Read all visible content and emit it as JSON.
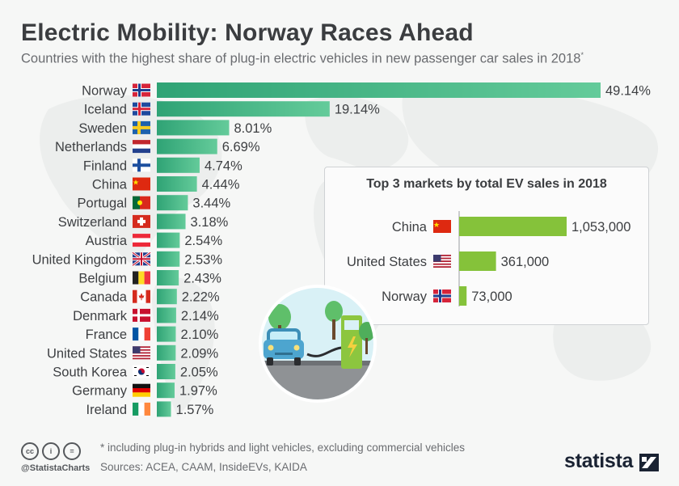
{
  "header": {
    "title": "Electric Mobility: Norway Races Ahead",
    "subtitle": "Countries with the highest share of plug-in electric vehicles in new passenger car sales in 2018",
    "subtitle_mark": "*"
  },
  "colors": {
    "main_bar_start": "#2fa375",
    "main_bar_end": "#64cb9a",
    "inset_bar": "#85c23a",
    "text": "#3d3f42",
    "brand": "#1a2333"
  },
  "chart_data": [
    {
      "type": "bar",
      "orientation": "horizontal",
      "title": "Electric Mobility: Norway Races Ahead",
      "subtitle": "Countries with the highest share of plug-in electric vehicles in new passenger car sales in 2018*",
      "categories": [
        "Norway",
        "Iceland",
        "Sweden",
        "Netherlands",
        "Finland",
        "China",
        "Portugal",
        "Switzerland",
        "Austria",
        "United Kingdom",
        "Belgium",
        "Canada",
        "Denmark",
        "France",
        "United States",
        "South Korea",
        "Germany",
        "Ireland"
      ],
      "values": [
        49.14,
        19.14,
        8.01,
        6.69,
        4.74,
        4.44,
        3.44,
        3.18,
        2.54,
        2.53,
        2.43,
        2.22,
        2.14,
        2.1,
        2.09,
        2.05,
        1.97,
        1.57
      ],
      "labels": [
        "49.14%",
        "19.14%",
        "8.01%",
        "6.69%",
        "4.74%",
        "4.44%",
        "3.44%",
        "3.18%",
        "2.54%",
        "2.53%",
        "2.43%",
        "2.22%",
        "2.14%",
        "2.10%",
        "2.09%",
        "2.05%",
        "1.97%",
        "1.57%"
      ],
      "flags": [
        "norway-flag",
        "iceland-flag",
        "sweden-flag",
        "netherlands-flag",
        "finland-flag",
        "china-flag",
        "portugal-flag",
        "switzerland-flag",
        "austria-flag",
        "uk-flag",
        "belgium-flag",
        "canada-flag",
        "denmark-flag",
        "france-flag",
        "us-flag",
        "south-korea-flag",
        "germany-flag",
        "ireland-flag"
      ],
      "unit": "%",
      "xlim": [
        0,
        49.14
      ],
      "grid": false,
      "legend": "none"
    },
    {
      "type": "bar",
      "orientation": "horizontal",
      "title": "Top 3 markets by total EV sales in 2018",
      "categories": [
        "China",
        "United States",
        "Norway"
      ],
      "values": [
        1053000,
        361000,
        73000
      ],
      "labels": [
        "1,053,000",
        "361,000",
        "73,000"
      ],
      "flags": [
        "china-flag",
        "us-flag",
        "norway-flag"
      ],
      "xlim": [
        0,
        1053000
      ],
      "grid": false,
      "legend": "none"
    }
  ],
  "footer": {
    "note": "* including plug-in hybrids and light vehicles, excluding commercial vehicles",
    "sources": "Sources: ACEA, CAAM, InsideEVs, KAIDA",
    "handle": "@StatistaCharts",
    "cc_icons": [
      "cc-icon",
      "by-icon",
      "nd-icon"
    ],
    "cc_text": [
      "cc",
      "i",
      "="
    ],
    "brand": "statista"
  }
}
